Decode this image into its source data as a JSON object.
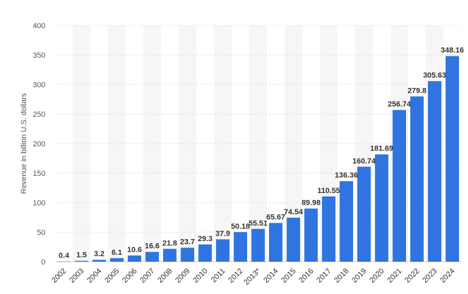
{
  "chart_data": {
    "type": "bar",
    "title": "",
    "xlabel": "",
    "ylabel": "Revenue in billion U.S. dollars",
    "ylim": [
      0,
      400
    ],
    "yticks": [
      0,
      50,
      100,
      150,
      200,
      250,
      300,
      350,
      400
    ],
    "grid": true,
    "legend": "none",
    "bar_color": "#2f74e0",
    "categories": [
      "2002",
      "2003",
      "2004",
      "2005",
      "2006",
      "2007",
      "2008",
      "2009",
      "2010",
      "2011",
      "2012",
      "2013*",
      "2014",
      "2015",
      "2016",
      "2017",
      "2018",
      "2019",
      "2020",
      "2021",
      "2022",
      "2023",
      "2024"
    ],
    "values": [
      0.4,
      1.5,
      3.2,
      6.1,
      10.6,
      16.6,
      21.8,
      23.7,
      29.3,
      37.9,
      50.18,
      55.51,
      65.67,
      74.54,
      89.98,
      110.55,
      136.36,
      160.74,
      181.69,
      256.74,
      279.8,
      305.63,
      348.16
    ],
    "value_labels": [
      "0.4",
      "1.5",
      "3.2",
      "6.1",
      "10.6",
      "16.6",
      "21.8",
      "23.7",
      "29.3",
      "37.9",
      "50.18",
      "55.51",
      "65.67",
      "74.54",
      "89.98",
      "110.55",
      "136.36",
      "160.74",
      "181.69",
      "256.74",
      "279.8",
      "305.63",
      "348.16"
    ]
  }
}
